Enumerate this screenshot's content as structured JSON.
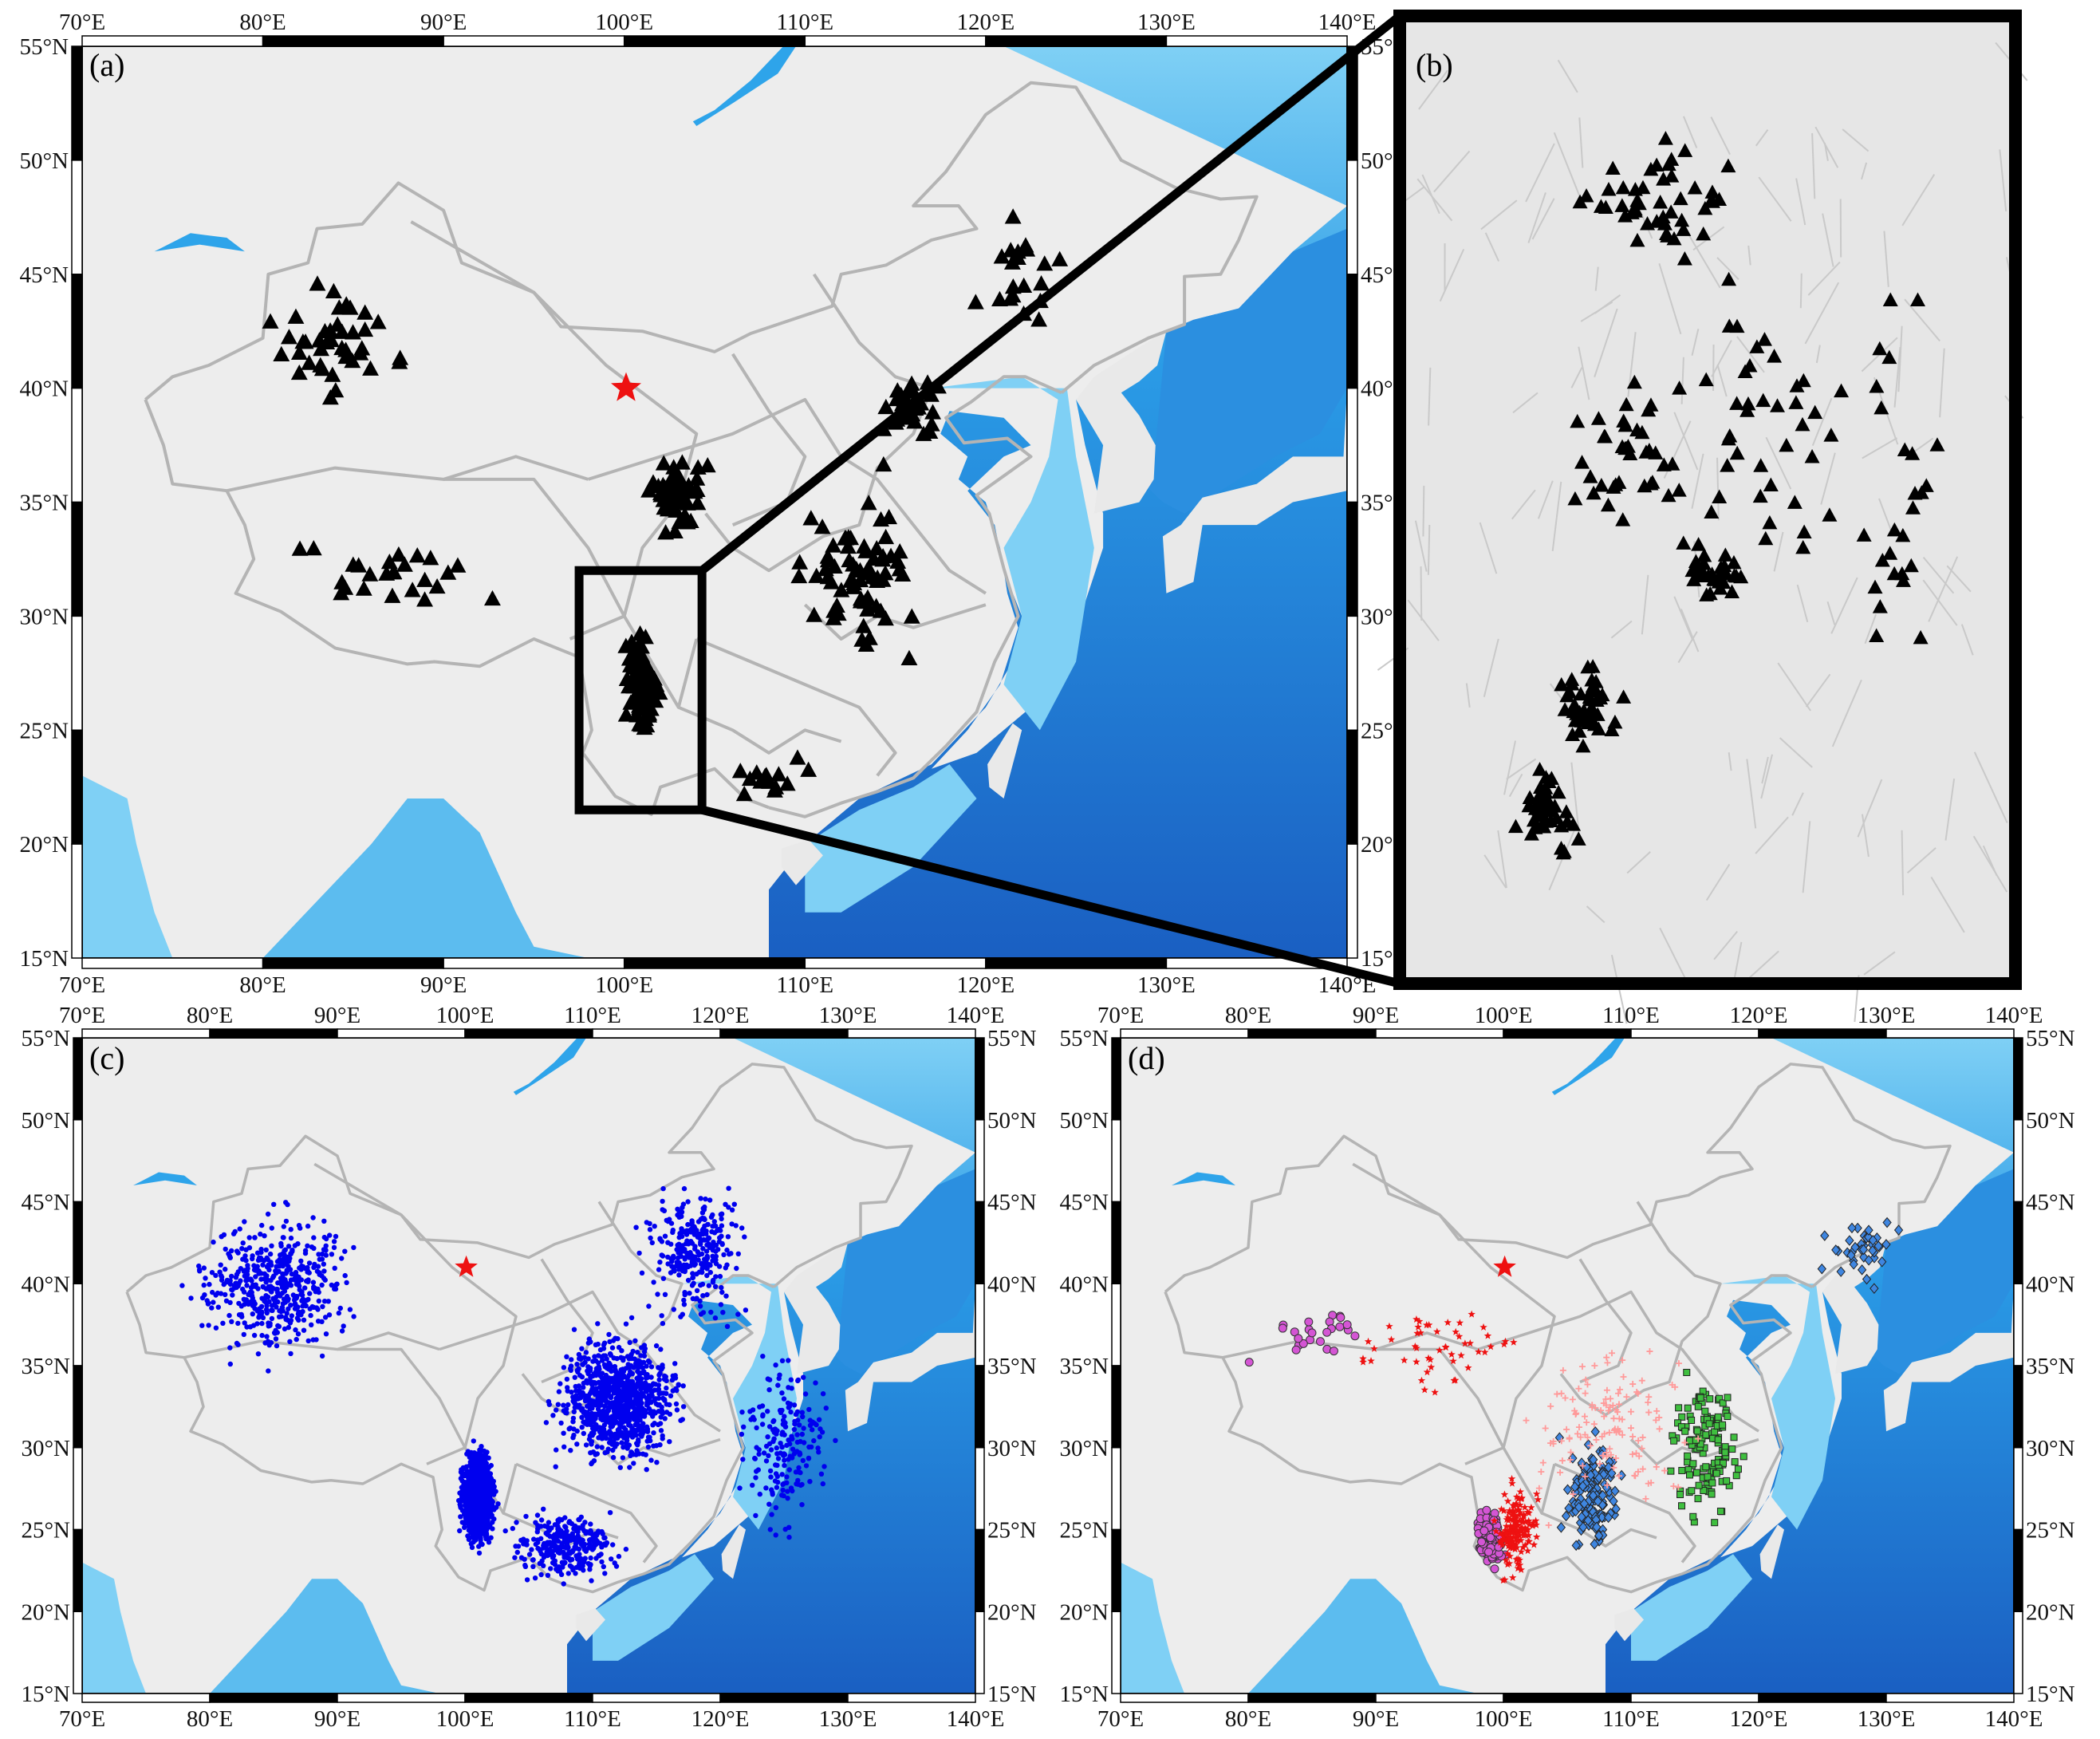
{
  "figure": {
    "panels": [
      {
        "id": "a",
        "label": "(a)"
      },
      {
        "id": "b",
        "label": "(b)"
      },
      {
        "id": "c",
        "label": "(c)"
      },
      {
        "id": "d",
        "label": "(d)"
      }
    ],
    "lon_ticks": [
      "70°E",
      "80°E",
      "90°E",
      "100°E",
      "110°E",
      "120°E",
      "130°E",
      "140°E"
    ],
    "lat_ticks": [
      "15°N",
      "20°N",
      "25°N",
      "30°N",
      "35°N",
      "40°N",
      "45°N",
      "50°N",
      "55°N"
    ],
    "lon_range": [
      70,
      140
    ],
    "lat_range": [
      15,
      55
    ],
    "inset_box_lon": [
      97.5,
      104.3
    ],
    "inset_box_lat": [
      21.5,
      32.0
    ],
    "reference_star": {
      "lon": 100.1,
      "lat": 40.0
    }
  },
  "colors": {
    "land": "#e9e9e9",
    "shallow_sea": "#7fd0f5",
    "deep_sea": "#1f7fd8",
    "border": "#b4b4b4",
    "stations": "#000000",
    "events": "#0000ee",
    "star": "#ee1111",
    "cluster_magenta": "#d455d4",
    "cluster_yellow": "#d8c93a",
    "cluster_blue": "#3f86e0",
    "cluster_green": "#3fbf3f",
    "cluster_pink": "#ff9a9a"
  },
  "icons": {
    "station_marker": "triangle-icon",
    "event_marker": "dot-icon",
    "reference_marker": "star-icon"
  }
}
